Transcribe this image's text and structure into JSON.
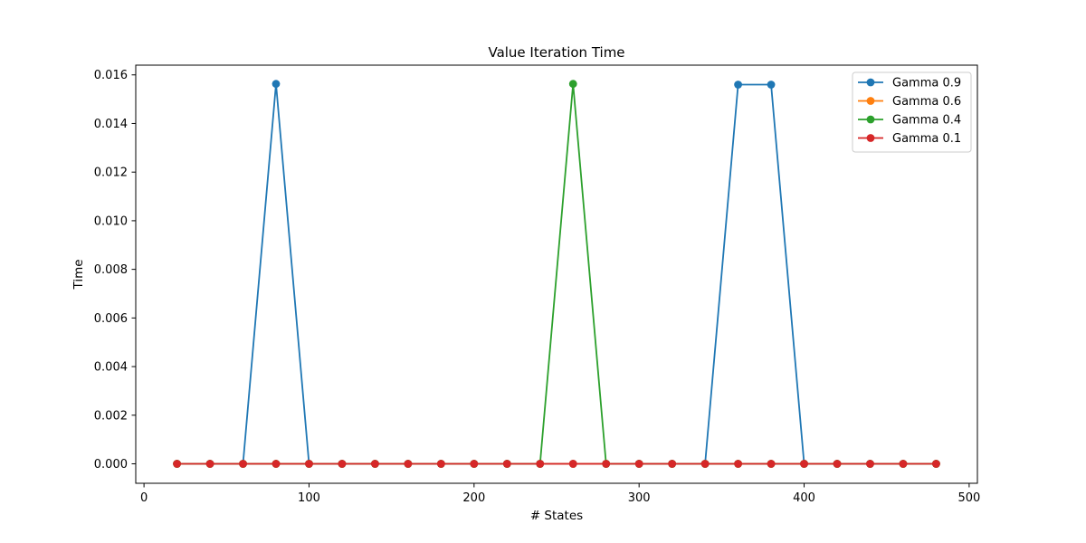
{
  "chart_data": {
    "type": "line",
    "title": "Value Iteration Time",
    "xlabel": "# States",
    "ylabel": "Time",
    "xlim": [
      -5,
      505
    ],
    "ylim": [
      -0.0008,
      0.0164
    ],
    "xticks": [
      0,
      100,
      200,
      300,
      400,
      500
    ],
    "xtick_labels": [
      "0",
      "100",
      "200",
      "300",
      "400",
      "500"
    ],
    "yticks": [
      0.0,
      0.002,
      0.004,
      0.006,
      0.008,
      0.01,
      0.012,
      0.014,
      0.016
    ],
    "ytick_labels": [
      "0.000",
      "0.002",
      "0.004",
      "0.006",
      "0.008",
      "0.010",
      "0.012",
      "0.014",
      "0.016"
    ],
    "grid": false,
    "legend_position": "top-right",
    "x": [
      20,
      40,
      60,
      80,
      100,
      120,
      140,
      160,
      180,
      200,
      220,
      240,
      260,
      280,
      300,
      320,
      340,
      360,
      380,
      400,
      420,
      440,
      460,
      480
    ],
    "series": [
      {
        "name": "Gamma 0.9",
        "color": "#1f77b4",
        "values": [
          0,
          0,
          0,
          0.01563,
          0,
          0,
          0,
          0,
          0,
          0,
          0,
          0,
          0,
          0,
          0,
          0,
          0,
          0.0156,
          0.0156,
          0,
          0,
          0,
          0,
          0
        ]
      },
      {
        "name": "Gamma 0.6",
        "color": "#ff7f0e",
        "values": [
          0,
          0,
          0,
          0,
          0,
          0,
          0,
          0,
          0,
          0,
          0,
          0,
          0,
          0,
          0,
          0,
          0,
          0,
          0,
          0,
          0,
          0,
          0,
          0
        ]
      },
      {
        "name": "Gamma 0.4",
        "color": "#2ca02c",
        "values": [
          0,
          0,
          0,
          0,
          0,
          0,
          0,
          0,
          0,
          0,
          0,
          0,
          0.01563,
          0,
          0,
          0,
          0,
          0,
          0,
          0,
          0,
          0,
          0,
          0
        ]
      },
      {
        "name": "Gamma 0.1",
        "color": "#d62728",
        "values": [
          0,
          0,
          0,
          0,
          0,
          0,
          0,
          0,
          0,
          0,
          0,
          0,
          0,
          0,
          0,
          0,
          0,
          0,
          0,
          0,
          0,
          0,
          0,
          0
        ]
      }
    ]
  }
}
